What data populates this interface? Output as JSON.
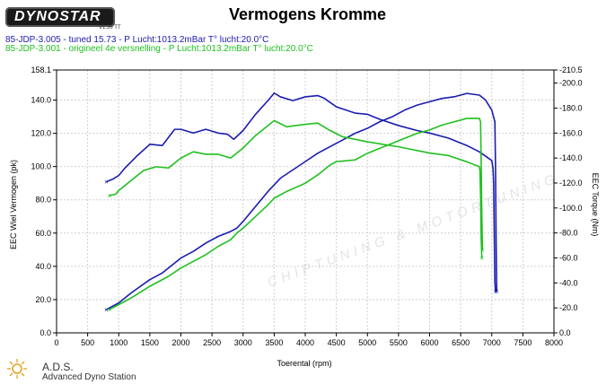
{
  "header": {
    "logo_text": "DYNOSTAR",
    "title": "Vermogens Kromme",
    "legend": [
      {
        "text": "85-JDP-3.005 - tuned 15.73  - P Lucht:1013.2mBar T° lucht:20.0°C",
        "color": "#1c1cb0"
      },
      {
        "text": "85-JDP-3.001 - origineel 4e versnelling  - P Lucht:1013.2mBar T° lucht:20.0°C",
        "color": "#1fc01f"
      }
    ]
  },
  "footer": {
    "ads_title": "A.D.S.",
    "ads_subtitle": "Advanced Dyno Station"
  },
  "watermark": {
    "text": "CHIPTUNING & MOTORTUNING"
  },
  "chart_data": {
    "type": "line",
    "xlabel": "Toerental (rpm)",
    "ylabel": "EEC Wiel Vermogen (pk)",
    "y2label": "EEC Torque (Nm)",
    "xlim": [
      0,
      8000
    ],
    "ylim": [
      0,
      158.1
    ],
    "y2lim": [
      0,
      210.5
    ],
    "xticks": [
      "0",
      "500",
      "1000",
      "1500",
      "2000",
      "2500",
      "3000",
      "3500",
      "4000",
      "4500",
      "5000",
      "5500",
      "6000",
      "6500",
      "7000",
      "7500",
      "8000"
    ],
    "yticks": [
      "0.0",
      "20.0",
      "40.0",
      "60.0",
      "80.0",
      "100.0",
      "120.0",
      "140.0",
      "158.1"
    ],
    "y2ticks": [
      "0.0",
      "-20.0",
      "-40.0",
      "-60.0",
      "-80.0",
      "-100.0",
      "-120.0",
      "-140.0",
      "-160.0",
      "-180.0",
      "-200.0",
      "-210.5"
    ],
    "grid": true,
    "series": [
      {
        "name": "85-JDP-3.005 - tuned 15.73",
        "color": "#1c1cb0",
        "power": [
          [
            800,
            14
          ],
          [
            900,
            16
          ],
          [
            1000,
            18
          ],
          [
            1200,
            24
          ],
          [
            1500,
            32
          ],
          [
            1700,
            36
          ],
          [
            2000,
            45
          ],
          [
            2200,
            49
          ],
          [
            2400,
            54
          ],
          [
            2600,
            58
          ],
          [
            2800,
            61
          ],
          [
            2900,
            63
          ],
          [
            3000,
            67
          ],
          [
            3200,
            76
          ],
          [
            3400,
            85
          ],
          [
            3600,
            93
          ],
          [
            3800,
            98
          ],
          [
            4000,
            103
          ],
          [
            4200,
            108
          ],
          [
            4400,
            112
          ],
          [
            4600,
            116
          ],
          [
            4800,
            120
          ],
          [
            5000,
            123
          ],
          [
            5200,
            127
          ],
          [
            5400,
            130
          ],
          [
            5600,
            134
          ],
          [
            5800,
            137
          ],
          [
            6000,
            139
          ],
          [
            6200,
            141
          ],
          [
            6400,
            142
          ],
          [
            6600,
            144
          ],
          [
            6800,
            143
          ],
          [
            6900,
            140
          ],
          [
            7000,
            134
          ],
          [
            7050,
            127
          ],
          [
            7060,
            100
          ],
          [
            7070,
            55
          ],
          [
            7080,
            25
          ]
        ],
        "torque": [
          [
            800,
            121
          ],
          [
            900,
            123
          ],
          [
            1000,
            126
          ],
          [
            1100,
            132
          ],
          [
            1300,
            142
          ],
          [
            1500,
            151
          ],
          [
            1700,
            150
          ],
          [
            1900,
            163
          ],
          [
            2000,
            163
          ],
          [
            2200,
            160
          ],
          [
            2400,
            163
          ],
          [
            2600,
            160
          ],
          [
            2750,
            159
          ],
          [
            2850,
            155
          ],
          [
            3000,
            162
          ],
          [
            3200,
            175
          ],
          [
            3400,
            186
          ],
          [
            3500,
            192
          ],
          [
            3600,
            189
          ],
          [
            3800,
            186
          ],
          [
            4000,
            189
          ],
          [
            4200,
            190
          ],
          [
            4300,
            188
          ],
          [
            4500,
            181
          ],
          [
            4800,
            176
          ],
          [
            5000,
            175
          ],
          [
            5200,
            171
          ],
          [
            5500,
            166
          ],
          [
            5800,
            162
          ],
          [
            6000,
            160
          ],
          [
            6300,
            156
          ],
          [
            6600,
            150
          ],
          [
            6800,
            145
          ],
          [
            7000,
            138
          ],
          [
            7020,
            132
          ],
          [
            7030,
            120
          ],
          [
            7040,
            80
          ],
          [
            7050,
            40
          ],
          [
            7060,
            33
          ]
        ]
      },
      {
        "name": "85-JDP-3.001 - origineel 4e versnelling",
        "color": "#1fc01f",
        "power": [
          [
            850,
            14
          ],
          [
            1000,
            17
          ],
          [
            1200,
            21
          ],
          [
            1500,
            28
          ],
          [
            1800,
            34
          ],
          [
            2000,
            39
          ],
          [
            2200,
            43
          ],
          [
            2400,
            47
          ],
          [
            2600,
            52
          ],
          [
            2800,
            56
          ],
          [
            2900,
            60
          ],
          [
            3000,
            63
          ],
          [
            3200,
            70
          ],
          [
            3400,
            77
          ],
          [
            3500,
            81
          ],
          [
            3700,
            85
          ],
          [
            4000,
            90
          ],
          [
            4200,
            95
          ],
          [
            4400,
            101
          ],
          [
            4500,
            103
          ],
          [
            4800,
            104
          ],
          [
            5000,
            108
          ],
          [
            5200,
            111
          ],
          [
            5400,
            114
          ],
          [
            5600,
            117
          ],
          [
            5800,
            120
          ],
          [
            6000,
            122
          ],
          [
            6200,
            125
          ],
          [
            6400,
            127
          ],
          [
            6600,
            129
          ],
          [
            6800,
            129
          ],
          [
            6820,
            127
          ],
          [
            6830,
            100
          ],
          [
            6840,
            70
          ],
          [
            6850,
            50
          ]
        ],
        "torque": [
          [
            850,
            110
          ],
          [
            950,
            111
          ],
          [
            1000,
            114
          ],
          [
            1200,
            122
          ],
          [
            1400,
            130
          ],
          [
            1600,
            133
          ],
          [
            1800,
            132
          ],
          [
            2000,
            140
          ],
          [
            2200,
            145
          ],
          [
            2400,
            143
          ],
          [
            2600,
            143
          ],
          [
            2800,
            140
          ],
          [
            3000,
            148
          ],
          [
            3200,
            158
          ],
          [
            3400,
            166
          ],
          [
            3500,
            170
          ],
          [
            3700,
            165
          ],
          [
            4000,
            167
          ],
          [
            4200,
            168
          ],
          [
            4400,
            162
          ],
          [
            4600,
            157
          ],
          [
            5000,
            153
          ],
          [
            5500,
            149
          ],
          [
            6000,
            144
          ],
          [
            6300,
            142
          ],
          [
            6600,
            137
          ],
          [
            6800,
            133
          ],
          [
            6810,
            130
          ],
          [
            6820,
            110
          ],
          [
            6830,
            75
          ],
          [
            6840,
            60
          ]
        ]
      }
    ]
  }
}
